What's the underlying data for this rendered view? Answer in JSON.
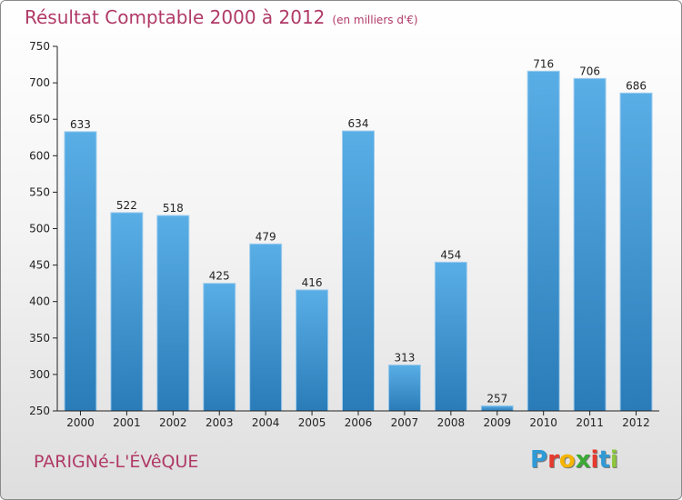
{
  "header": {
    "title": "Résultat Comptable 2000 à 2012",
    "subtitle": "(en milliers d'€)"
  },
  "footer": {
    "location": "PARIGNé-L'ÉVêQUE",
    "logo_letters": [
      "P",
      "r",
      "o",
      "x",
      "i",
      "t",
      "i"
    ],
    "logo_colors": [
      "#2f9ad6",
      "#e63a2e",
      "#f4b400",
      "#3aaa35",
      "#e63a2e",
      "#2f9ad6",
      "#8dc63f"
    ]
  },
  "colors": {
    "title": "#b03a67",
    "bar_light": "#5aaee6",
    "bar_dark": "#2a7cb8",
    "axis": "#222222"
  },
  "chart_data": {
    "type": "bar",
    "categories": [
      "2000",
      "2001",
      "2002",
      "2003",
      "2004",
      "2005",
      "2006",
      "2007",
      "2008",
      "2009",
      "2010",
      "2011",
      "2012"
    ],
    "values": [
      633,
      522,
      518,
      425,
      479,
      416,
      634,
      313,
      454,
      257,
      716,
      706,
      686
    ],
    "title": "Résultat Comptable 2000 à 2012",
    "xlabel": "",
    "ylabel": "",
    "ylim": [
      250,
      750
    ],
    "yticks": [
      250,
      300,
      350,
      400,
      450,
      500,
      550,
      600,
      650,
      700,
      750
    ],
    "grid": false,
    "legend": "none"
  }
}
